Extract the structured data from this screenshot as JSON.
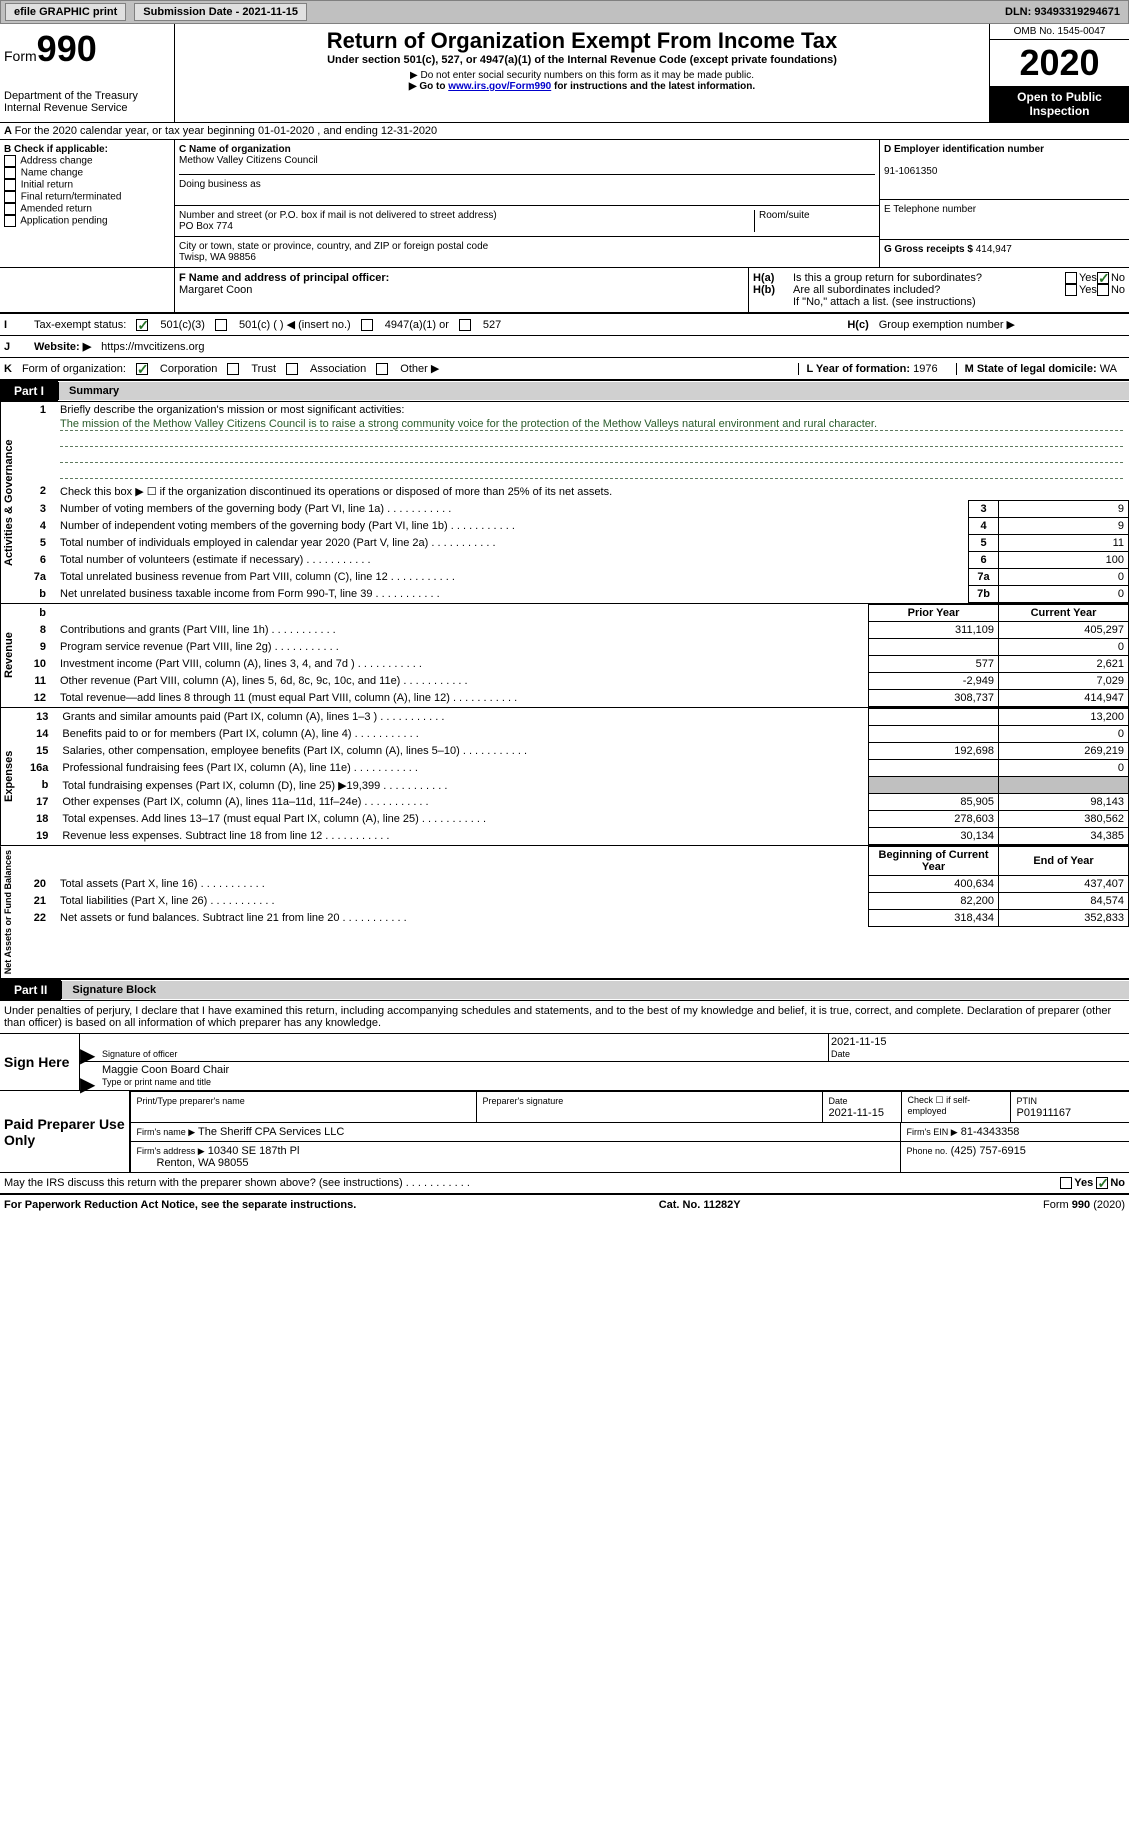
{
  "toolbar": {
    "efile": "efile GRAPHIC print",
    "submission_label": "Submission Date - 2021-11-15",
    "dln": "DLN: 93493319294671"
  },
  "header": {
    "form_prefix": "Form",
    "form_number": "990",
    "dept": "Department of the Treasury\nInternal Revenue Service",
    "title": "Return of Organization Exempt From Income Tax",
    "subtitle": "Under section 501(c), 527, or 4947(a)(1) of the Internal Revenue Code (except private foundations)",
    "note1": "▶ Do not enter social security numbers on this form as it may be made public.",
    "note2_prefix": "▶ Go to ",
    "note2_link": "www.irs.gov/Form990",
    "note2_suffix": " for instructions and the latest information.",
    "omb": "OMB No. 1545-0047",
    "year": "2020",
    "open": "Open to Public Inspection"
  },
  "a": {
    "text": "For the 2020 calendar year, or tax year beginning 01-01-2020   , and ending 12-31-2020"
  },
  "b": {
    "label": "B Check if applicable:",
    "opts": [
      "Address change",
      "Name change",
      "Initial return",
      "Final return/terminated",
      "Amended return",
      "Application pending"
    ]
  },
  "c": {
    "name_label": "C Name of organization",
    "name": "Methow Valley Citizens Council",
    "dba_label": "Doing business as",
    "dba": "",
    "street_label": "Number and street (or P.O. box if mail is not delivered to street address)",
    "room_label": "Room/suite",
    "street": "PO Box 774",
    "city_label": "City or town, state or province, country, and ZIP or foreign postal code",
    "city": "Twisp, WA  98856"
  },
  "d": {
    "label": "D Employer identification number",
    "value": "91-1061350"
  },
  "e": {
    "label": "E Telephone number",
    "value": ""
  },
  "g": {
    "label": "G Gross receipts $",
    "value": "414,947"
  },
  "f": {
    "label": "F  Name and address of principal officer:",
    "value": "Margaret Coon"
  },
  "h": {
    "a": "Is this a group return for subordinates?",
    "b": "Are all subordinates included?",
    "note": "If \"No,\" attach a list. (see instructions)",
    "c": "Group exemption number ▶"
  },
  "i": {
    "label": "Tax-exempt status:",
    "opts": [
      "501(c)(3)",
      "501(c) (  ) ◀ (insert no.)",
      "4947(a)(1) or",
      "527"
    ]
  },
  "j": {
    "label": "Website: ▶",
    "value": "https://mvcitizens.org"
  },
  "k": {
    "label": "Form of organization:",
    "opts": [
      "Corporation",
      "Trust",
      "Association",
      "Other ▶"
    ]
  },
  "l": {
    "label": "L Year of formation:",
    "value": "1976"
  },
  "m": {
    "label": "M State of legal domicile:",
    "value": "WA"
  },
  "part1": {
    "num": "Part I",
    "title": "Summary",
    "l1": "Briefly describe the organization's mission or most significant activities:",
    "mission": "The mission of the Methow Valley Citizens Council is to raise a strong community voice for the protection of the Methow Valleys natural environment and rural character.",
    "l2": "Check this box ▶ ☐  if the organization discontinued its operations or disposed of more than 25% of its net assets.",
    "gov_label": "Activities & Governance",
    "rev_label": "Revenue",
    "exp_label": "Expenses",
    "net_label": "Net Assets or Fund Balances",
    "lines_gov": [
      {
        "n": "3",
        "t": "Number of voting members of the governing body (Part VI, line 1a)",
        "box": "3",
        "v": "9"
      },
      {
        "n": "4",
        "t": "Number of independent voting members of the governing body (Part VI, line 1b)",
        "box": "4",
        "v": "9"
      },
      {
        "n": "5",
        "t": "Total number of individuals employed in calendar year 2020 (Part V, line 2a)",
        "box": "5",
        "v": "11"
      },
      {
        "n": "6",
        "t": "Total number of volunteers (estimate if necessary)",
        "box": "6",
        "v": "100"
      },
      {
        "n": "7a",
        "t": "Total unrelated business revenue from Part VIII, column (C), line 12",
        "box": "7a",
        "v": "0"
      },
      {
        "n": "b",
        "t": "Net unrelated business taxable income from Form 990-T, line 39",
        "box": "7b",
        "v": "0"
      }
    ],
    "col_prior": "Prior Year",
    "col_current": "Current Year",
    "col_boy": "Beginning of Current Year",
    "col_eoy": "End of Year",
    "lines_rev": [
      {
        "n": "8",
        "t": "Contributions and grants (Part VIII, line 1h)",
        "p": "311,109",
        "c": "405,297"
      },
      {
        "n": "9",
        "t": "Program service revenue (Part VIII, line 2g)",
        "p": "",
        "c": "0"
      },
      {
        "n": "10",
        "t": "Investment income (Part VIII, column (A), lines 3, 4, and 7d )",
        "p": "577",
        "c": "2,621"
      },
      {
        "n": "11",
        "t": "Other revenue (Part VIII, column (A), lines 5, 6d, 8c, 9c, 10c, and 11e)",
        "p": "-2,949",
        "c": "7,029"
      },
      {
        "n": "12",
        "t": "Total revenue—add lines 8 through 11 (must equal Part VIII, column (A), line 12)",
        "p": "308,737",
        "c": "414,947"
      }
    ],
    "lines_exp": [
      {
        "n": "13",
        "t": "Grants and similar amounts paid (Part IX, column (A), lines 1–3 )",
        "p": "",
        "c": "13,200"
      },
      {
        "n": "14",
        "t": "Benefits paid to or for members (Part IX, column (A), line 4)",
        "p": "",
        "c": "0"
      },
      {
        "n": "15",
        "t": "Salaries, other compensation, employee benefits (Part IX, column (A), lines 5–10)",
        "p": "192,698",
        "c": "269,219"
      },
      {
        "n": "16a",
        "t": "Professional fundraising fees (Part IX, column (A), line 11e)",
        "p": "",
        "c": "0"
      },
      {
        "n": "b",
        "t": "Total fundraising expenses (Part IX, column (D), line 25) ▶19,399",
        "p": "GRAY",
        "c": "GRAY"
      },
      {
        "n": "17",
        "t": "Other expenses (Part IX, column (A), lines 11a–11d, 11f–24e)",
        "p": "85,905",
        "c": "98,143"
      },
      {
        "n": "18",
        "t": "Total expenses. Add lines 13–17 (must equal Part IX, column (A), line 25)",
        "p": "278,603",
        "c": "380,562"
      },
      {
        "n": "19",
        "t": "Revenue less expenses. Subtract line 18 from line 12",
        "p": "30,134",
        "c": "34,385"
      }
    ],
    "lines_net": [
      {
        "n": "20",
        "t": "Total assets (Part X, line 16)",
        "p": "400,634",
        "c": "437,407"
      },
      {
        "n": "21",
        "t": "Total liabilities (Part X, line 26)",
        "p": "82,200",
        "c": "84,574"
      },
      {
        "n": "22",
        "t": "Net assets or fund balances. Subtract line 21 from line 20",
        "p": "318,434",
        "c": "352,833"
      }
    ]
  },
  "part2": {
    "num": "Part II",
    "title": "Signature Block",
    "perjury": "Under penalties of perjury, I declare that I have examined this return, including accompanying schedules and statements, and to the best of my knowledge and belief, it is true, correct, and complete. Declaration of preparer (other than officer) is based on all information of which preparer has any knowledge.",
    "sign_here": "Sign Here",
    "sig_officer": "Signature of officer",
    "sig_date": "2021-11-15",
    "date_label": "Date",
    "officer_name": "Maggie Coon  Board Chair",
    "type_name": "Type or print name and title",
    "paid": "Paid Preparer Use Only",
    "prep_name_label": "Print/Type preparer's name",
    "prep_name": "",
    "prep_sig_label": "Preparer's signature",
    "prep_date_label": "Date",
    "prep_date": "2021-11-15",
    "self_emp": "Check ☐ if self-employed",
    "ptin_label": "PTIN",
    "ptin": "P01911167",
    "firm_name_label": "Firm's name    ▶",
    "firm_name": "The Sheriff CPA Services LLC",
    "firm_ein_label": "Firm's EIN ▶",
    "firm_ein": "81-4343358",
    "firm_addr_label": "Firm's address ▶",
    "firm_addr1": "10340 SE 187th Pl",
    "firm_addr2": "Renton, WA  98055",
    "phone_label": "Phone no.",
    "phone": "(425) 757-6915",
    "discuss": "May the IRS discuss this return with the preparer shown above? (see instructions)"
  },
  "footer": {
    "left": "For Paperwork Reduction Act Notice, see the separate instructions.",
    "center": "Cat. No. 11282Y",
    "right": "Form 990 (2020)"
  }
}
